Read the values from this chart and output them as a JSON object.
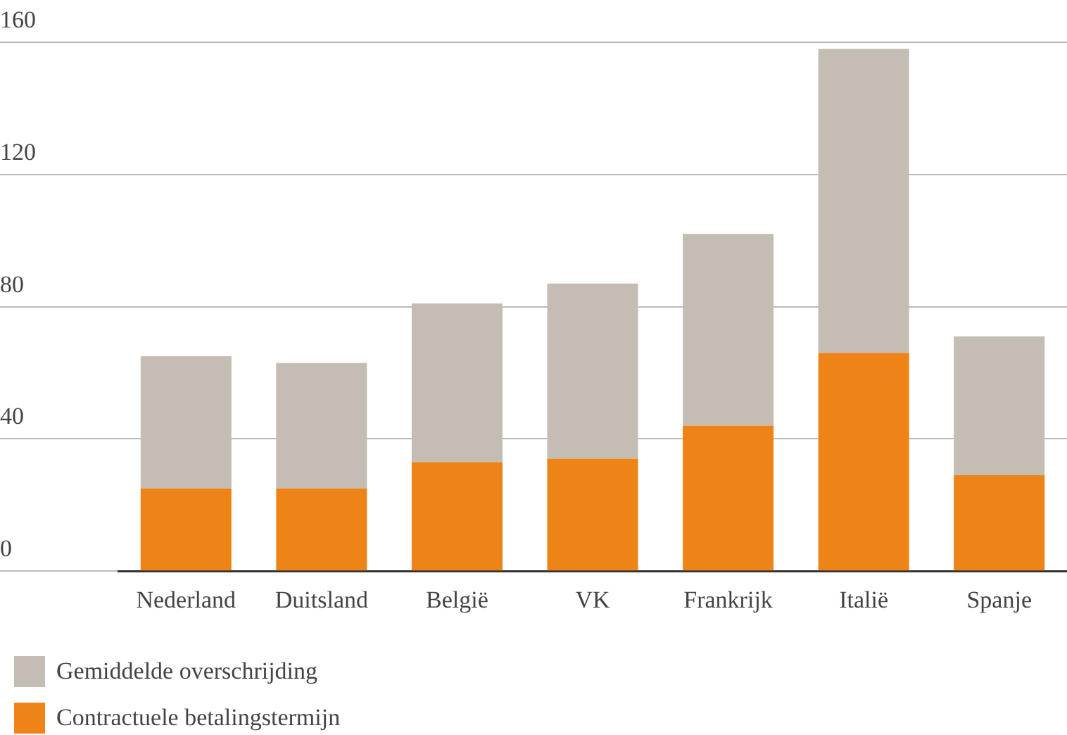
{
  "chart_data": {
    "type": "bar",
    "stacked": true,
    "categories": [
      "Nederland",
      "Duitsland",
      "België",
      "VK",
      "Frankrijk",
      "Italië",
      "Spanje"
    ],
    "series": [
      {
        "name": "Contractuele betalingstermijn",
        "color": "#ee8418",
        "values": [
          25,
          25,
          33,
          34,
          44,
          66,
          29
        ]
      },
      {
        "name": "Gemiddelde overschrijding",
        "color": "#c4bdb4",
        "values": [
          40,
          38,
          48,
          53,
          58,
          92,
          42
        ]
      }
    ],
    "ylim": [
      0,
      160
    ],
    "yticks": [
      0,
      40,
      80,
      120,
      160
    ],
    "grid": "y",
    "legend": "bottom left"
  }
}
